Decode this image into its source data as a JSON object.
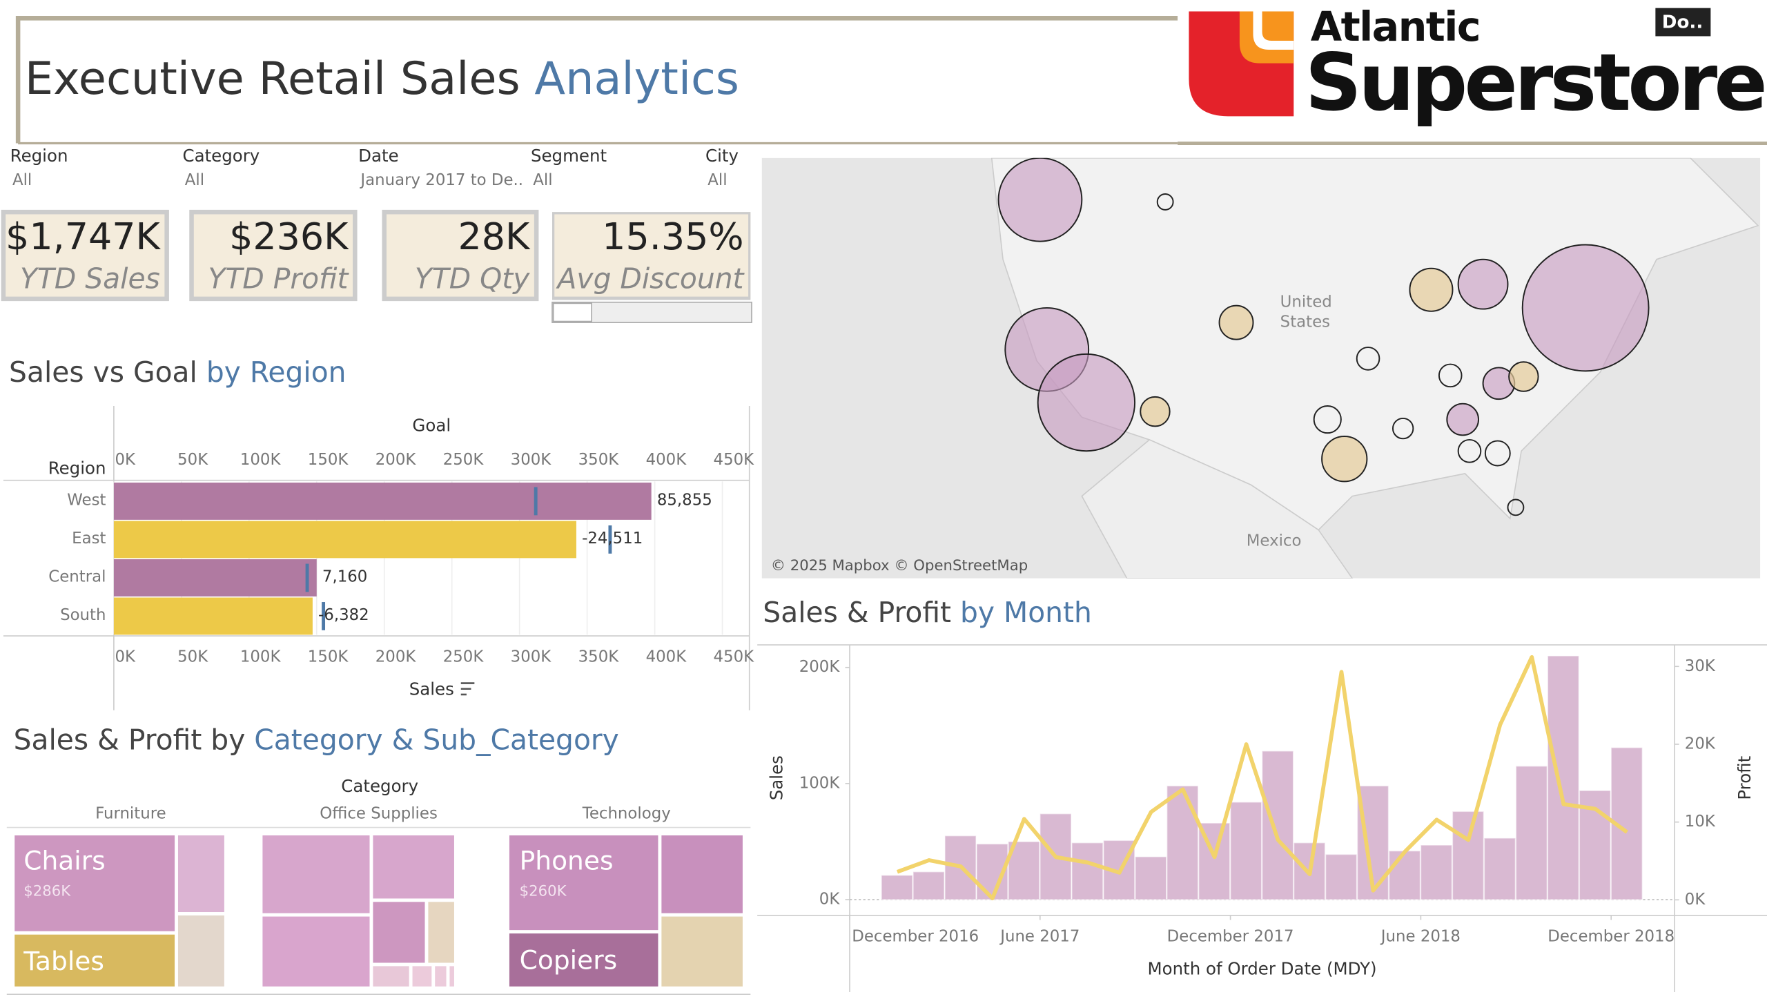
{
  "header": {
    "title": "Executive Retail Sales",
    "title_accent": "Analytics",
    "logo_top": "Atlantic",
    "logo_bottom": "Superstore",
    "button": "Do.."
  },
  "filters": [
    {
      "label": "Region",
      "value": "All"
    },
    {
      "label": "Category",
      "value": "All"
    },
    {
      "label": "Date",
      "value": "January 2017 to De.."
    },
    {
      "label": "Segment",
      "value": "All"
    },
    {
      "label": "City",
      "value": "All"
    }
  ],
  "kpis": [
    {
      "value": "$1,747K",
      "label": "YTD Sales"
    },
    {
      "value": "$236K",
      "label": "YTD Profit"
    },
    {
      "value": "28K",
      "label": "YTD Qty"
    },
    {
      "value": "15.35%",
      "label": "YTD Avg Discount"
    }
  ],
  "map": {
    "country_1": "United",
    "country_1b": "States",
    "country_2": "Mexico",
    "credit": "© 2025 Mapbox © OpenStreetMap"
  },
  "chart_data": [
    {
      "type": "hbar_goal",
      "title": "Sales vs Goal",
      "title_accent": "by Region",
      "y_label": "Region",
      "categories": [
        "West",
        "East",
        "Central",
        "South"
      ],
      "series": [
        {
          "name": "Sales",
          "colors": [
            "#b07aa1",
            "#edc948",
            "#b07aa1",
            "#edc948"
          ],
          "values": [
            397500,
            342000,
            150000,
            147000
          ]
        },
        {
          "name": "Goal",
          "color": "#4e79a7",
          "values": [
            312000,
            367000,
            143000,
            155000
          ]
        },
        {
          "values": [
            85855,
            -24511,
            7160,
            -6382
          ],
          "value_labels": [
            "85,855",
            "-24,511",
            "7,160",
            "-6,382"
          ]
        }
      ],
      "xlim": [
        0,
        470000
      ],
      "xticks": [
        {
          "value": 0,
          "label": "0K"
        },
        {
          "value": 50000,
          "label": "50K"
        },
        {
          "value": 100000,
          "label": "100K"
        },
        {
          "value": 150000,
          "label": "150K"
        },
        {
          "value": 200000,
          "label": "200K"
        },
        {
          "value": 250000,
          "label": "250K"
        },
        {
          "value": 300000,
          "label": "300K"
        },
        {
          "value": 350000,
          "label": "350K"
        },
        {
          "value": 400000,
          "label": "400K"
        },
        {
          "value": 450000,
          "label": "450K"
        }
      ],
      "grid": true
    },
    {
      "type": "bar_line",
      "title": "Sales & Profit",
      "title_accent": "by Month",
      "x_label": "Month of Order Date (MDY)",
      "x": [
        "2017-01",
        "2017-02",
        "2017-03",
        "2017-04",
        "2017-05",
        "2017-06",
        "2017-07",
        "2017-08",
        "2017-09",
        "2017-10",
        "2017-11",
        "2017-12",
        "2018-01",
        "2018-02",
        "2018-03",
        "2018-04",
        "2018-05",
        "2018-06",
        "2018-07",
        "2018-08",
        "2018-09",
        "2018-10",
        "2018-11",
        "2018-12"
      ],
      "xlim": [
        "2016-12",
        "2019-02"
      ],
      "xticks": [
        {
          "value": "2016-12",
          "label": "December 2016"
        },
        {
          "value": "2017-06",
          "label": "June 2017"
        },
        {
          "value": "2017-12",
          "label": "December 2017"
        },
        {
          "value": "2018-06",
          "label": "June 2018"
        },
        {
          "value": "2018-12",
          "label": "December 2018"
        }
      ],
      "series": [
        {
          "name": "Sales",
          "color": "#d9b9d2",
          "values": [
            21000,
            24000,
            55000,
            48000,
            50000,
            74000,
            49000,
            51000,
            37000,
            98000,
            66000,
            84000,
            128000,
            49000,
            39000,
            98000,
            42000,
            47000,
            76000,
            53000,
            115000,
            210000,
            94000,
            131000
          ]
        },
        {
          "name": "Profit",
          "color": "#f2d36b",
          "axis": "y2",
          "values": [
            3600,
            5100,
            4300,
            200,
            10400,
            5500,
            4800,
            3500,
            11300,
            14200,
            5500,
            20000,
            7700,
            3300,
            29300,
            1200,
            6200,
            10300,
            7700,
            22500,
            31200,
            12300,
            11700,
            8700
          ]
        }
      ],
      "ylim": [
        -13600,
        213600
      ],
      "yticks": [
        {
          "value": 0,
          "label": "0K"
        },
        {
          "value": 100000,
          "label": "100K"
        },
        {
          "value": 200000,
          "label": "200K"
        }
      ],
      "y2lim": [
        -2000,
        31900
      ],
      "y2ticks": [
        {
          "value": 0,
          "label": "0K"
        },
        {
          "value": 10000,
          "label": "10K"
        },
        {
          "value": 20000,
          "label": "20K"
        },
        {
          "value": 30000,
          "label": "30K"
        }
      ]
    }
  ],
  "treemap": {
    "title": "Sales & Profit by",
    "title_accent": "Category & Sub_Category",
    "header": "Category",
    "categories": [
      "Furniture",
      "Office Supplies",
      "Technology"
    ],
    "tiles": [
      {
        "name": "Chairs",
        "label": "$286K"
      },
      {
        "name": "Tables"
      },
      {
        "name": "Phones",
        "label": "$260K"
      },
      {
        "name": "Copiers"
      }
    ]
  }
}
